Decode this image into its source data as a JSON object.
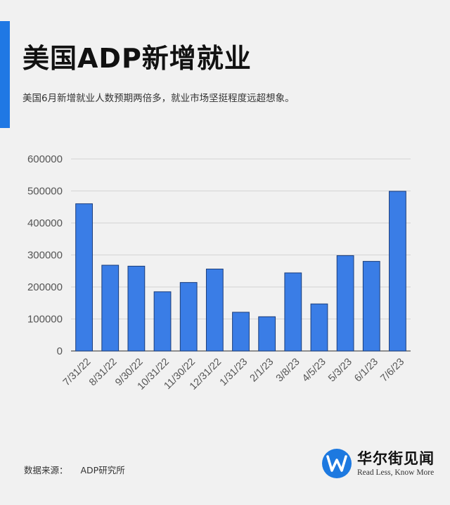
{
  "header": {
    "title": "美国ADP新增就业",
    "subtitle": "美国6月新增就业人数预期两倍多，就业市场坚挺程度远超想象。"
  },
  "chart_data": {
    "type": "bar",
    "title": "",
    "xlabel": "",
    "ylabel": "",
    "categories": [
      "7/31/22",
      "8/31/22",
      "9/30/22",
      "10/31/22",
      "11/30/22",
      "12/31/22",
      "1/31/23",
      "2/1/23",
      "3/8/23",
      "4/5/23",
      "5/3/23",
      "6/1/23",
      "7/6/23"
    ],
    "values": [
      460000,
      268000,
      265000,
      185000,
      214000,
      256000,
      121000,
      107000,
      244000,
      147000,
      298000,
      280000,
      499000
    ],
    "ylim": [
      0,
      600000
    ],
    "yticks": [
      0,
      100000,
      200000,
      300000,
      400000,
      500000,
      600000
    ],
    "grid": true,
    "legend": "none",
    "bar_color": "#3a7de6",
    "bar_stroke": "#1b3d7a"
  },
  "footer": {
    "source_label": "数据来源：",
    "source_value": "ADP研究所"
  },
  "brand": {
    "name": "华尔街见闻",
    "slogan": "Read Less, Know More",
    "logo_icon": "w-logo-icon",
    "color": "#1d79e0"
  }
}
